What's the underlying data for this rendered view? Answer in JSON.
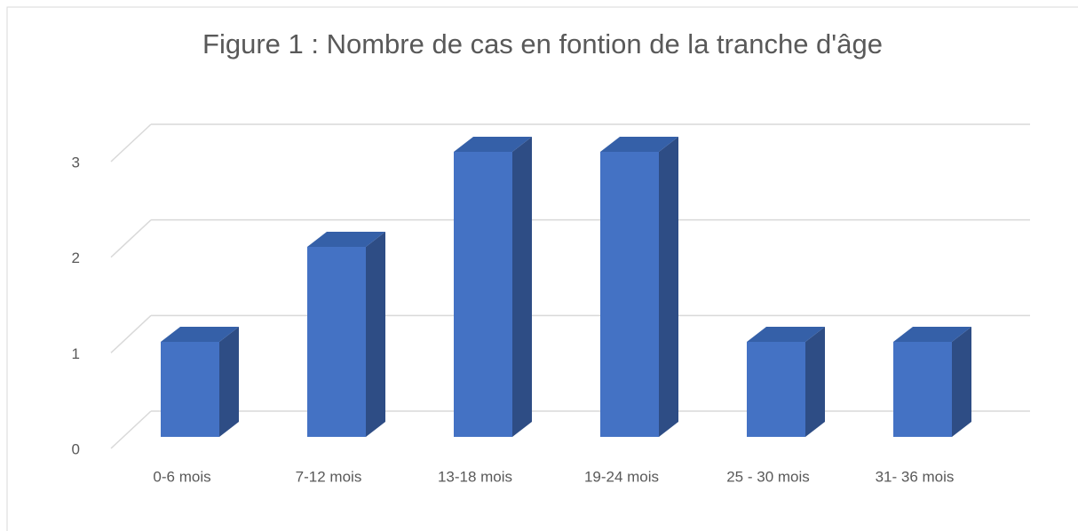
{
  "chart_data": {
    "type": "bar3d",
    "title": "Figure 1 : Nombre de cas en fontion de la tranche d'âge",
    "categories": [
      "0-6 mois",
      "7-12 mois",
      "13-18 mois",
      "19-24 mois",
      "25 - 30 mois",
      "31- 36 mois"
    ],
    "values": [
      1,
      2,
      3,
      3,
      1,
      1
    ],
    "color": "#4472c4",
    "ylim": [
      0,
      3
    ],
    "yticks": [
      0,
      1,
      2,
      3
    ],
    "grid": true
  }
}
